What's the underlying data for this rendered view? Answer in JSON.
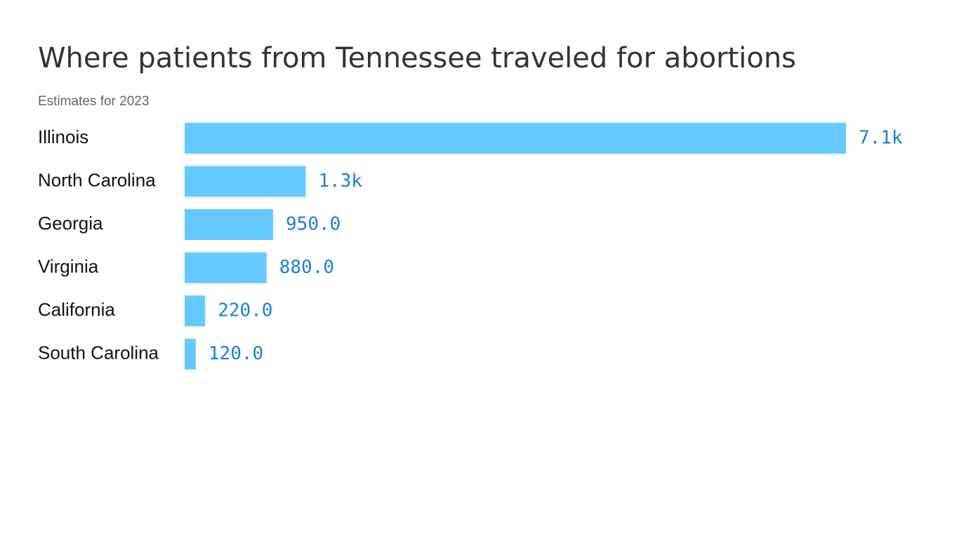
{
  "chart_data": {
    "type": "bar",
    "title": "Where patients from Tennessee traveled for abortions",
    "subtitle": "Estimates for 2023",
    "categories": [
      "Illinois",
      "North Carolina",
      "Georgia",
      "Virginia",
      "California",
      "South Carolina"
    ],
    "values": [
      7100,
      1300,
      950,
      880,
      220,
      120
    ],
    "value_labels": [
      "7.1k",
      "1.3k",
      "950.0",
      "880.0",
      "220.0",
      "120.0"
    ],
    "color": "#66c9ff",
    "label_color": "#1a7fd6"
  }
}
